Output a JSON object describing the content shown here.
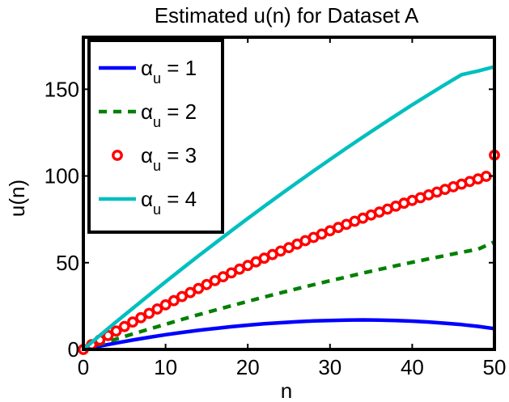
{
  "chart_data": {
    "type": "line",
    "title": "Estimated u(n) for Dataset A",
    "xlabel": "n",
    "ylabel": "u(n)",
    "xlim": [
      0,
      50
    ],
    "ylim": [
      0,
      180
    ],
    "xticks": [
      0,
      10,
      20,
      30,
      40,
      50
    ],
    "yticks": [
      0,
      50,
      100,
      150
    ],
    "grid": false,
    "legend_position": "top-left",
    "series": [
      {
        "legend_symbol": "α",
        "legend_subscript": "u",
        "legend_value": "= 1",
        "color": "#0000ff",
        "style": "solid",
        "x": [
          0,
          2,
          4,
          6,
          8,
          10,
          12,
          14,
          16,
          18,
          20,
          22,
          24,
          26,
          28,
          30,
          32,
          34,
          36,
          38,
          40,
          42,
          44,
          46,
          48,
          50
        ],
        "y": [
          0,
          1.9,
          3.7,
          5.4,
          7.0,
          8.5,
          9.8,
          11.0,
          12.1,
          13.1,
          14.0,
          14.8,
          15.4,
          16.0,
          16.4,
          16.7,
          16.9,
          17.0,
          16.9,
          16.7,
          16.3,
          15.8,
          15.1,
          14.3,
          13.3,
          12.0
        ]
      },
      {
        "legend_symbol": "α",
        "legend_subscript": "u",
        "legend_value": "= 2",
        "color": "#008000",
        "style": "dashed",
        "x": [
          0,
          2,
          4,
          6,
          8,
          10,
          12,
          14,
          16,
          18,
          20,
          22,
          24,
          26,
          28,
          30,
          32,
          34,
          36,
          38,
          40,
          42,
          44,
          46,
          48,
          50
        ],
        "y": [
          0,
          3.0,
          6.0,
          8.9,
          11.7,
          14.5,
          17.3,
          20.0,
          22.6,
          25.2,
          27.7,
          30.2,
          32.6,
          35.0,
          37.3,
          39.6,
          41.8,
          44.0,
          46.1,
          48.2,
          50.2,
          52.2,
          54.1,
          56.0,
          57.8,
          62.0
        ]
      },
      {
        "legend_symbol": "α",
        "legend_subscript": "u",
        "legend_value": "= 3",
        "color": "#ff0000",
        "style": "circles",
        "x": [
          0,
          1,
          2,
          3,
          4,
          5,
          6,
          7,
          8,
          9,
          10,
          11,
          12,
          13,
          14,
          15,
          16,
          17,
          18,
          19,
          20,
          21,
          22,
          23,
          24,
          25,
          26,
          27,
          28,
          29,
          30,
          31,
          32,
          33,
          34,
          35,
          36,
          37,
          38,
          39,
          40,
          41,
          42,
          43,
          44,
          45,
          46,
          47,
          48,
          49,
          50
        ],
        "y": [
          0,
          2.7,
          5.4,
          8.0,
          10.6,
          13.2,
          15.8,
          18.3,
          20.8,
          23.3,
          25.7,
          28.1,
          30.5,
          32.8,
          35.1,
          37.4,
          39.7,
          41.9,
          44.1,
          46.3,
          48.4,
          50.5,
          52.6,
          54.7,
          56.7,
          58.7,
          60.7,
          62.7,
          64.6,
          66.5,
          68.4,
          70.3,
          72.1,
          73.9,
          75.7,
          77.5,
          79.2,
          80.9,
          82.6,
          84.3,
          85.9,
          87.5,
          89.1,
          90.7,
          92.3,
          93.8,
          95.3,
          96.8,
          98.3,
          99.8,
          112.0
        ]
      },
      {
        "legend_symbol": "α",
        "legend_subscript": "u",
        "legend_value": "= 4",
        "color": "#00bfbf",
        "style": "solid",
        "x": [
          0,
          2,
          4,
          6,
          8,
          10,
          12,
          14,
          16,
          18,
          20,
          22,
          24,
          26,
          28,
          30,
          32,
          34,
          36,
          38,
          40,
          42,
          44,
          46,
          48,
          50
        ],
        "y": [
          0,
          8.0,
          15.9,
          23.7,
          31.4,
          39.0,
          46.5,
          53.9,
          61.2,
          68.4,
          75.5,
          82.5,
          89.4,
          96.2,
          102.9,
          109.5,
          116.0,
          122.4,
          128.7,
          134.9,
          141.0,
          146.9,
          152.7,
          158.4,
          160.5,
          163.0
        ]
      }
    ]
  }
}
